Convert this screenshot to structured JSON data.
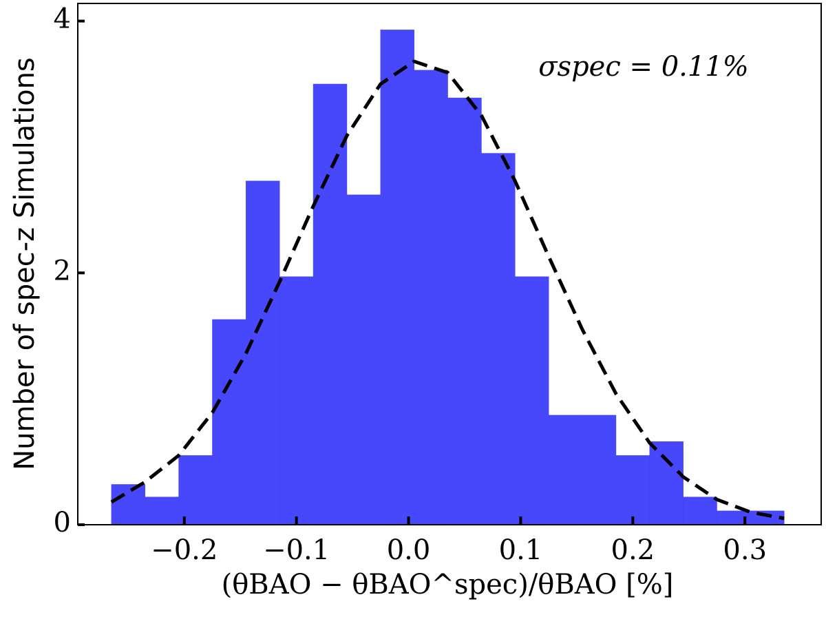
{
  "chart_data": {
    "type": "histogram",
    "xlabel": "(θBAO − θBAO^spec)/θBAO [%]",
    "ylabel": "Number of spec-z Simulations",
    "annotation": "σspec = 0.11%",
    "bins": [
      -0.265,
      -0.235,
      -0.205,
      -0.175,
      -0.145,
      -0.115,
      -0.085,
      -0.055,
      -0.025,
      0.005,
      0.035,
      0.065,
      0.095,
      0.125,
      0.155,
      0.185,
      0.215,
      0.245,
      0.275,
      0.305,
      0.335
    ],
    "values": [
      0.32,
      0.22,
      0.55,
      1.63,
      2.73,
      1.97,
      3.5,
      2.62,
      3.93,
      3.61,
      3.39,
      2.95,
      1.97,
      0.87,
      0.87,
      0.55,
      0.66,
      0.22,
      0.11,
      0.11
    ],
    "color": "#4343fc",
    "curve": {
      "color": "#000000",
      "x": [
        -0.265,
        -0.235,
        -0.205,
        -0.175,
        -0.145,
        -0.115,
        -0.085,
        -0.055,
        -0.025,
        0.005,
        0.035,
        0.065,
        0.095,
        0.125,
        0.155,
        0.185,
        0.215,
        0.245,
        0.275,
        0.305,
        0.335
      ],
      "values": [
        0.18,
        0.34,
        0.55,
        0.89,
        1.36,
        1.93,
        2.53,
        3.09,
        3.5,
        3.68,
        3.59,
        3.25,
        2.73,
        2.13,
        1.55,
        1.04,
        0.65,
        0.38,
        0.2,
        0.1,
        0.05
      ]
    },
    "xlim": [
      -0.295,
      0.368
    ],
    "ylim": [
      0,
      4.14
    ],
    "xticks": [
      {
        "value": -0.2,
        "label": "−0.2"
      },
      {
        "value": -0.1,
        "label": "−0.1"
      },
      {
        "value": 0,
        "label": "0.0"
      },
      0.1,
      0.2,
      0.3
    ],
    "yticks": [
      0,
      2,
      4
    ]
  }
}
